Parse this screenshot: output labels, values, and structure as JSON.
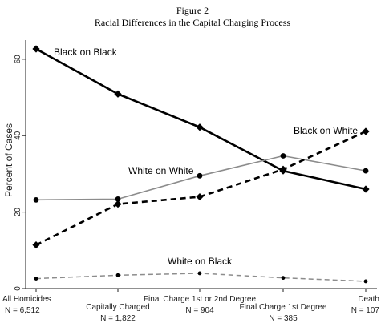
{
  "figure": {
    "label": "Figure 2",
    "title": "Racial Differences in the Capital Charging Process"
  },
  "chart_data": {
    "type": "line",
    "ylabel": "Percent of Cases",
    "xlabel": "",
    "ylim": [
      0,
      65
    ],
    "yticks": [
      0,
      20,
      40,
      60
    ],
    "grid": false,
    "categories": [
      {
        "label": "All Homicides",
        "n": "N = 6,512"
      },
      {
        "label": "Capitally Charged",
        "n": "N = 1,822"
      },
      {
        "label": "Final Charge 1st or 2nd Degree",
        "n": "N = 904"
      },
      {
        "label": "Final Charge 1st Degree",
        "n": "N = 385"
      },
      {
        "label": "Death",
        "n": "N = 107"
      }
    ],
    "series": [
      {
        "name": "Black on Black",
        "values": [
          62.7,
          50.9,
          42.2,
          30.8,
          26.0
        ],
        "color": "#000000",
        "style": "solid-thick",
        "marker": "diamond"
      },
      {
        "name": "White on White",
        "values": [
          23.2,
          23.4,
          29.5,
          34.7,
          30.8
        ],
        "color": "#8c8c8c",
        "style": "solid",
        "marker": "circle"
      },
      {
        "name": "Black on White",
        "values": [
          11.4,
          22.1,
          24.0,
          31.2,
          41.1
        ],
        "color": "#000000",
        "style": "dashed-thick",
        "marker": "diamond"
      },
      {
        "name": "White on Black",
        "values": [
          2.6,
          3.5,
          4.0,
          2.8,
          1.9
        ],
        "color": "#8c8c8c",
        "style": "dashed",
        "marker": "circle"
      }
    ]
  }
}
